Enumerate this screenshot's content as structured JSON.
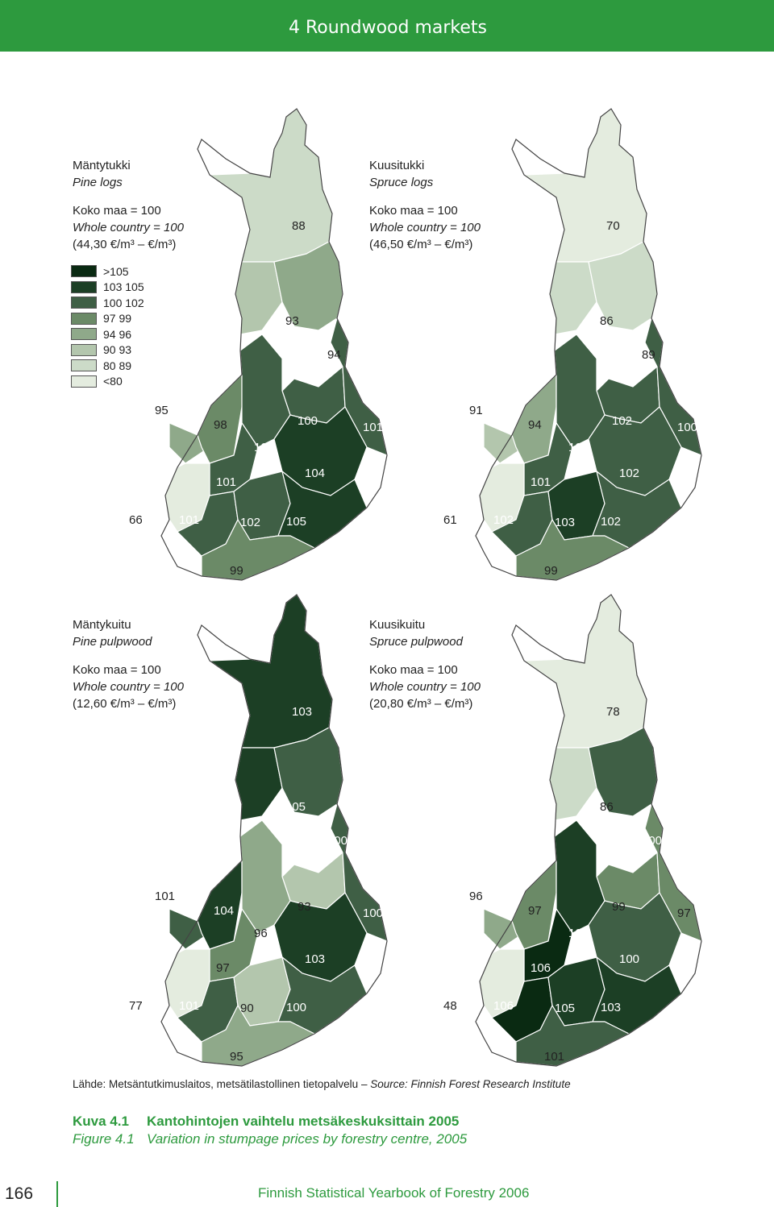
{
  "header": {
    "title": "4 Roundwood markets"
  },
  "maps": {
    "pine_logs": {
      "fi": "Mäntytukki",
      "en": "Pine logs",
      "koko": "Koko maa = 100",
      "whole": "Whole country = 100",
      "price": "(44,30 €/m³ – €/m³)"
    },
    "spruce_logs": {
      "fi": "Kuusitukki",
      "en": "Spruce logs",
      "koko": "Koko maa = 100",
      "whole": "Whole country = 100",
      "price": "(46,50 €/m³ – €/m³)"
    },
    "pine_pulp": {
      "fi": "Mäntykuitu",
      "en": "Pine pulpwood",
      "koko": "Koko maa = 100",
      "whole": "Whole country = 100",
      "price": "(12,60 €/m³ – €/m³)"
    },
    "spruce_pulp": {
      "fi": "Kuusikuitu",
      "en": "Spruce pulpwood",
      "koko": "Koko maa = 100",
      "whole": "Whole country = 100",
      "price": "(20,80 €/m³ – €/m³)"
    }
  },
  "legend": [
    {
      "label": ">105",
      "color": "#0a2a12"
    },
    {
      "label": "103 105",
      "color": "#1c3f25"
    },
    {
      "label": "100 102",
      "color": "#3f5f45"
    },
    {
      "label": "97 99",
      "color": "#6b8a67"
    },
    {
      "label": "94 96",
      "color": "#8fa98a"
    },
    {
      "label": "90 93",
      "color": "#b3c6ad"
    },
    {
      "label": "80 89",
      "color": "#ccdbc8"
    },
    {
      "label": "<80",
      "color": "#e4ecdf"
    }
  ],
  "values": {
    "pine_logs": [
      "88",
      "93",
      "94",
      "95",
      "98",
      "100",
      "101",
      "102",
      "101",
      "104",
      "66",
      "101",
      "102",
      "105",
      "99"
    ],
    "spruce_logs": [
      "70",
      "86",
      "89",
      "91",
      "94",
      "102",
      "100",
      "102",
      "101",
      "102",
      "61",
      "102",
      "103",
      "102",
      "99"
    ],
    "pine_pulp": [
      "103",
      "105",
      "100",
      "101",
      "104",
      "93",
      "100",
      "96",
      "97",
      "103",
      "77",
      "101",
      "90",
      "100",
      "95"
    ],
    "spruce_pulp": [
      "78",
      "86",
      "100",
      "96",
      "97",
      "99",
      "97",
      "103",
      "106",
      "100",
      "48",
      "106",
      "105",
      "103",
      "101"
    ]
  },
  "source": {
    "fi": "Lähde: Metsäntutkimuslaitos, metsätilastollinen tietopalvelu –",
    "en": "Source: Finnish Forest Research Institute"
  },
  "caption": {
    "fi_num": "Kuva 4.1",
    "fi_text": "Kantohintojen vaihtelu metsäkeskuksittain 2005",
    "en_num": "Figure 4.1",
    "en_text": "Variation in stumpage prices by forestry centre, 2005"
  },
  "footer": {
    "page": "166",
    "title": "Finnish Statistical Yearbook of Forestry 2006"
  }
}
